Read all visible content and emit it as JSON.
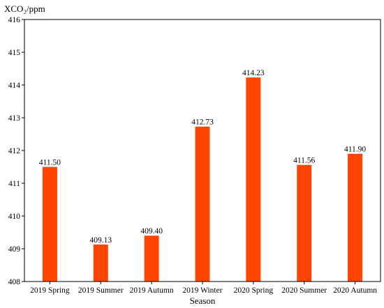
{
  "chart_data": {
    "type": "bar",
    "ylabel": "XCO₂/ppm",
    "xlabel": "Season",
    "categories": [
      "2019 Spring",
      "2019 Summer",
      "2019 Autumn",
      "2019 Winter",
      "2020 Spring",
      "2020 Summer",
      "2020 Autumn"
    ],
    "values": [
      411.5,
      409.13,
      409.4,
      412.73,
      414.23,
      411.56,
      411.9
    ],
    "value_labels": [
      "411.50",
      "409.13",
      "409.40",
      "412.73",
      "414.23",
      "411.56",
      "411.90"
    ],
    "ylim": [
      408,
      416
    ],
    "yticks": [
      408,
      409,
      410,
      411,
      412,
      413,
      414,
      415,
      416
    ],
    "grid": false,
    "legend": "none",
    "bar_color": "#ff4500"
  }
}
